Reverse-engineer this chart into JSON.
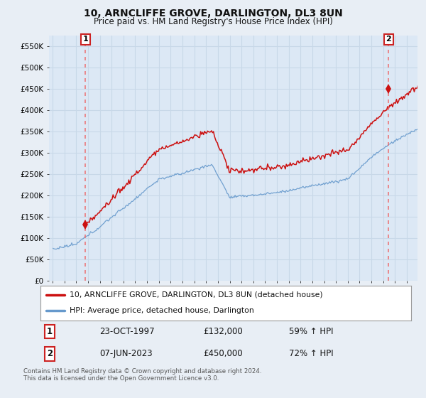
{
  "title": "10, ARNCLIFFE GROVE, DARLINGTON, DL3 8UN",
  "subtitle": "Price paid vs. HM Land Registry's House Price Index (HPI)",
  "ylim": [
    0,
    575000
  ],
  "yticks": [
    0,
    50000,
    100000,
    150000,
    200000,
    250000,
    300000,
    350000,
    400000,
    450000,
    500000,
    550000
  ],
  "ytick_labels": [
    "£0",
    "£50K",
    "£100K",
    "£150K",
    "£200K",
    "£250K",
    "£300K",
    "£350K",
    "£400K",
    "£450K",
    "£500K",
    "£550K"
  ],
  "bg_color": "#e8eef5",
  "plot_bg_color": "#dce8f5",
  "grid_color": "#c8d8e8",
  "sale1_price": 132000,
  "sale2_price": 450000,
  "sale1_pct": "59% ↑ HPI",
  "sale2_pct": "72% ↑ HPI",
  "line1_color": "#cc1111",
  "line2_color": "#6699cc",
  "marker_color": "#cc1111",
  "vline_color": "#ee6666",
  "legend1_label": "10, ARNCLIFFE GROVE, DARLINGTON, DL3 8UN (detached house)",
  "legend2_label": "HPI: Average price, detached house, Darlington",
  "footnote": "Contains HM Land Registry data © Crown copyright and database right 2024.\nThis data is licensed under the Open Government Licence v3.0.",
  "sale1_display_date": "23-OCT-1997",
  "sale1_display_price": "£132,000",
  "sale2_display_date": "07-JUN-2023",
  "sale2_display_price": "£450,000"
}
